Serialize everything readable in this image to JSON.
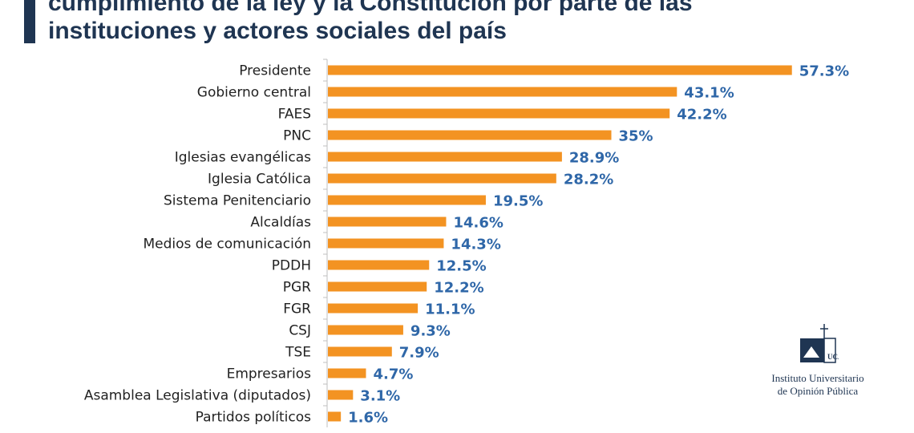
{
  "title": {
    "line1": "cumplimiento de la ley y la Constitución por parte de las",
    "line2": "instituciones y actores sociales del país"
  },
  "logo": {
    "line1": "Instituto Universitario",
    "line2": "de Opinión Pública",
    "mark_text": "UCA"
  },
  "colors": {
    "bar": "#f39322",
    "value_text": "#2f67a8",
    "title": "#1f3552",
    "accent": "#1f3552"
  },
  "chart_data": {
    "type": "bar",
    "orientation": "horizontal",
    "title": "cumplimiento de la ley y la Constitución por parte de las instituciones y actores sociales del país",
    "xlabel": "",
    "ylabel": "",
    "xlim": [
      0,
      60
    ],
    "grid": false,
    "legend": "none",
    "categories": [
      "Presidente",
      "Gobierno central",
      "FAES",
      "PNC",
      "Iglesias evangélicas",
      "Iglesia Católica",
      "Sistema Penitenciario",
      "Alcaldías",
      "Medios de comunicación",
      "PDDH",
      "PGR",
      "FGR",
      "CSJ",
      "TSE",
      "Empresarios",
      "Asamblea Legislativa (diputados)",
      "Partidos políticos"
    ],
    "values": [
      57.3,
      43.1,
      42.2,
      35,
      28.9,
      28.2,
      19.5,
      14.6,
      14.3,
      12.5,
      12.2,
      11.1,
      9.3,
      7.9,
      4.7,
      3.1,
      1.6
    ],
    "value_labels": [
      "57.3%",
      "43.1%",
      "42.2%",
      "35%",
      "28.9%",
      "28.2%",
      "19.5%",
      "14.6%",
      "14.3%",
      "12.5%",
      "12.2%",
      "11.1%",
      "9.3%",
      "7.9%",
      "4.7%",
      "3.1%",
      "1.6%"
    ]
  }
}
